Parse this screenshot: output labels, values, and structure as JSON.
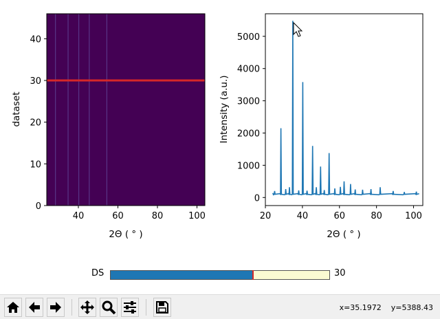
{
  "chart_data": [
    {
      "type": "heatmap",
      "xlabel": "2Θ ( ° )",
      "ylabel": "dataset",
      "xlim": [
        24,
        104
      ],
      "ylim": [
        0,
        46
      ],
      "xticks": [
        40,
        60,
        80,
        100
      ],
      "yticks": [
        0,
        10,
        20,
        30,
        40
      ],
      "colormap": "viridis",
      "background_color": "#440154",
      "peak_lines_x": [
        28.4,
        34.8,
        40.2,
        45.5,
        54.4
      ],
      "highlight_dataset": 30,
      "highlight_color": "#d62728"
    },
    {
      "type": "line",
      "xlabel": "2Θ ( ° )",
      "ylabel": "Intensity (a.u.)",
      "xlim": [
        20,
        105
      ],
      "ylim": [
        -250,
        5700
      ],
      "xticks": [
        20,
        40,
        60,
        80,
        100
      ],
      "yticks": [
        0,
        1000,
        2000,
        3000,
        4000,
        5000
      ],
      "color": "#1f77b4",
      "baseline": 100,
      "x_range": [
        24,
        103
      ],
      "peaks": [
        {
          "x": 25.0,
          "y": 200
        },
        {
          "x": 28.4,
          "y": 2150
        },
        {
          "x": 31.0,
          "y": 260
        },
        {
          "x": 33.0,
          "y": 320
        },
        {
          "x": 34.8,
          "y": 5480
        },
        {
          "x": 38.0,
          "y": 220
        },
        {
          "x": 40.2,
          "y": 3580
        },
        {
          "x": 42.5,
          "y": 210
        },
        {
          "x": 45.5,
          "y": 1600
        },
        {
          "x": 47.5,
          "y": 320
        },
        {
          "x": 49.8,
          "y": 960
        },
        {
          "x": 51.8,
          "y": 230
        },
        {
          "x": 54.4,
          "y": 1380
        },
        {
          "x": 57.5,
          "y": 280
        },
        {
          "x": 60.5,
          "y": 330
        },
        {
          "x": 62.5,
          "y": 500
        },
        {
          "x": 66.0,
          "y": 420
        },
        {
          "x": 68.5,
          "y": 250
        },
        {
          "x": 72.5,
          "y": 240
        },
        {
          "x": 77.0,
          "y": 260
        },
        {
          "x": 82.0,
          "y": 320
        },
        {
          "x": 89.0,
          "y": 200
        },
        {
          "x": 95.0,
          "y": 170
        },
        {
          "x": 101.5,
          "y": 180
        }
      ]
    }
  ],
  "slider": {
    "label": "DS",
    "value": "30",
    "fraction": 0.652,
    "fill_color": "#1f77b4",
    "track_color": "#fafad2",
    "handle_color": "#d62728"
  },
  "toolbar": {
    "buttons": [
      "home-icon",
      "back-icon",
      "forward-icon",
      "pan-icon",
      "zoom-icon",
      "configure-icon",
      "save-icon"
    ],
    "coords_x": "x=35.1972",
    "coords_y": "y=5388.43"
  }
}
